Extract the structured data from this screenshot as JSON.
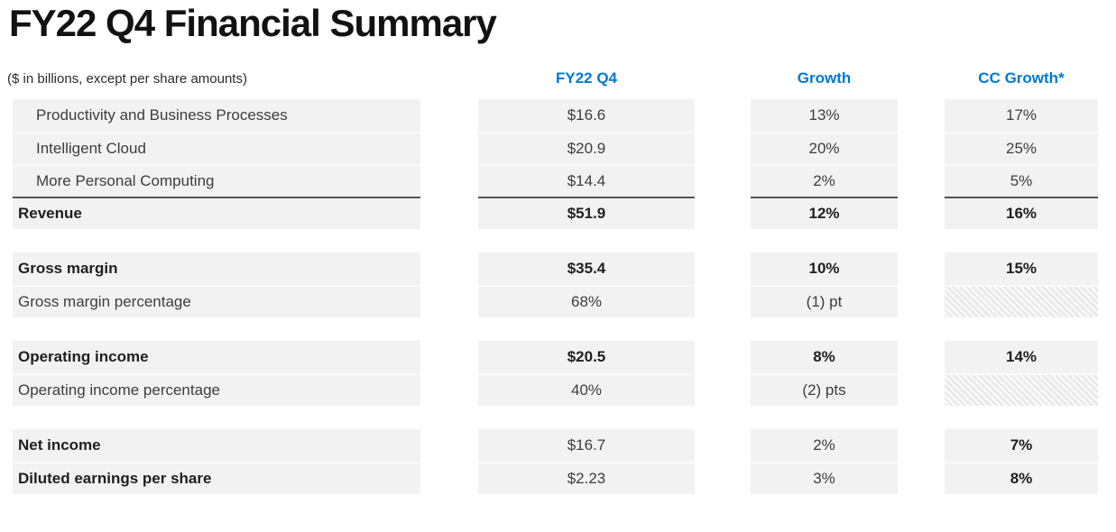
{
  "title": "FY22 Q4 Financial Summary",
  "subtitle": "($ in billions, except per share amounts)",
  "columns": [
    "FY22 Q4",
    "Growth",
    "CC Growth*"
  ],
  "colors": {
    "accent_blue": "#0078D4",
    "row_background": "#F2F2F2",
    "subtotal_rule": "#545454",
    "hatch_stripe": "#E6E6E6",
    "title_text": "#121212",
    "body_text": "#3D3D3D"
  },
  "groups": [
    {
      "rows": [
        {
          "label": "Productivity and Business Processes",
          "indent": true,
          "bold": false,
          "sumline": false,
          "cells": [
            {
              "text": "$16.6",
              "bold": false
            },
            {
              "text": "13%",
              "bold": false
            },
            {
              "text": "17%",
              "bold": false
            }
          ]
        },
        {
          "label": "Intelligent Cloud",
          "indent": true,
          "bold": false,
          "sumline": false,
          "cells": [
            {
              "text": "$20.9",
              "bold": false
            },
            {
              "text": "20%",
              "bold": false
            },
            {
              "text": "25%",
              "bold": false
            }
          ]
        },
        {
          "label": "More Personal Computing",
          "indent": true,
          "bold": false,
          "sumline": false,
          "cells": [
            {
              "text": "$14.4",
              "bold": false
            },
            {
              "text": "2%",
              "bold": false
            },
            {
              "text": "5%",
              "bold": false
            }
          ]
        },
        {
          "label": "Revenue",
          "indent": false,
          "bold": true,
          "sumline": true,
          "cells": [
            {
              "text": "$51.9",
              "bold": true
            },
            {
              "text": "12%",
              "bold": true
            },
            {
              "text": "16%",
              "bold": true
            }
          ]
        }
      ]
    },
    {
      "rows": [
        {
          "label": "Gross margin",
          "indent": false,
          "bold": true,
          "sumline": false,
          "cells": [
            {
              "text": "$35.4",
              "bold": true
            },
            {
              "text": "10%",
              "bold": true
            },
            {
              "text": "15%",
              "bold": true
            }
          ]
        },
        {
          "label": "Gross margin percentage",
          "indent": false,
          "bold": false,
          "sumline": false,
          "cells": [
            {
              "text": "68%",
              "bold": false
            },
            {
              "text": "(1) pt",
              "bold": false
            },
            {
              "text": "",
              "bold": false,
              "hatch": true
            }
          ]
        }
      ]
    },
    {
      "rows": [
        {
          "label": "Operating income",
          "indent": false,
          "bold": true,
          "sumline": false,
          "cells": [
            {
              "text": "$20.5",
              "bold": true
            },
            {
              "text": "8%",
              "bold": true
            },
            {
              "text": "14%",
              "bold": true
            }
          ]
        },
        {
          "label": "Operating income percentage",
          "indent": false,
          "bold": false,
          "sumline": false,
          "cells": [
            {
              "text": "40%",
              "bold": false
            },
            {
              "text": "(2) pts",
              "bold": false
            },
            {
              "text": "",
              "bold": false,
              "hatch": true
            }
          ]
        }
      ]
    },
    {
      "rows": [
        {
          "label": "Net income",
          "indent": false,
          "bold": true,
          "sumline": false,
          "cells": [
            {
              "text": "$16.7",
              "bold": false
            },
            {
              "text": "2%",
              "bold": false
            },
            {
              "text": "7%",
              "bold": true
            }
          ]
        },
        {
          "label": "Diluted earnings per share",
          "indent": false,
          "bold": true,
          "sumline": false,
          "cells": [
            {
              "text": "$2.23",
              "bold": false
            },
            {
              "text": "3%",
              "bold": false
            },
            {
              "text": "8%",
              "bold": true
            }
          ]
        }
      ]
    }
  ]
}
